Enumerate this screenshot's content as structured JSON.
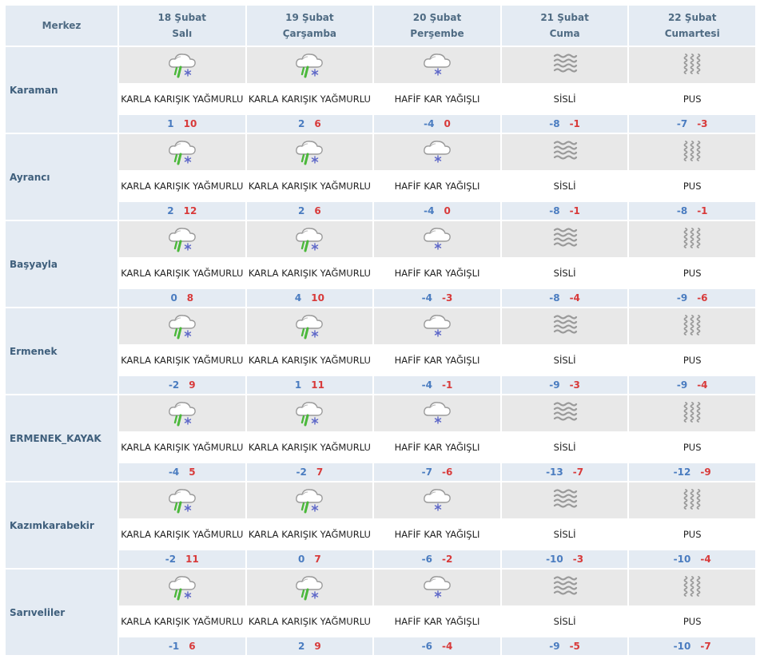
{
  "header": {
    "station_label": "Merkez",
    "days": [
      {
        "date": "18 Şubat",
        "weekday": "Salı"
      },
      {
        "date": "19 Şubat",
        "weekday": "Çarşamba"
      },
      {
        "date": "20 Şubat",
        "weekday": "Perşembe"
      },
      {
        "date": "21 Şubat",
        "weekday": "Cuma"
      },
      {
        "date": "22 Şubat",
        "weekday": "Cumartesi"
      }
    ]
  },
  "icon_names": {
    "sleet": "sleet-cloud-icon",
    "snow": "snow-cloud-icon",
    "fog": "fog-icon",
    "haze": "haze-icon"
  },
  "colors": {
    "min_temp": "#4a7cc0",
    "max_temp": "#d83a3a",
    "header_bg": "#e4ebf3",
    "icon_bg": "#e8e8e8"
  },
  "rows": [
    {
      "city": "Karaman",
      "days": [
        {
          "icon": "sleet",
          "desc": "KARLA KARIŞIK YAĞMURLU",
          "min": "1",
          "max": "10"
        },
        {
          "icon": "sleet",
          "desc": "KARLA KARIŞIK YAĞMURLU",
          "min": "2",
          "max": "6"
        },
        {
          "icon": "snow",
          "desc": "HAFİF KAR YAĞIŞLI",
          "min": "-4",
          "max": "0"
        },
        {
          "icon": "fog",
          "desc": "SİSLİ",
          "min": "-8",
          "max": "-1"
        },
        {
          "icon": "haze",
          "desc": "PUS",
          "min": "-7",
          "max": "-3"
        }
      ]
    },
    {
      "city": "Ayrancı",
      "days": [
        {
          "icon": "sleet",
          "desc": "KARLA KARIŞIK YAĞMURLU",
          "min": "2",
          "max": "12"
        },
        {
          "icon": "sleet",
          "desc": "KARLA KARIŞIK YAĞMURLU",
          "min": "2",
          "max": "6"
        },
        {
          "icon": "snow",
          "desc": "HAFİF KAR YAĞIŞLI",
          "min": "-4",
          "max": "0"
        },
        {
          "icon": "fog",
          "desc": "SİSLİ",
          "min": "-8",
          "max": "-1"
        },
        {
          "icon": "haze",
          "desc": "PUS",
          "min": "-8",
          "max": "-1"
        }
      ]
    },
    {
      "city": "Başyayla",
      "days": [
        {
          "icon": "sleet",
          "desc": "KARLA KARIŞIK YAĞMURLU",
          "min": "0",
          "max": "8"
        },
        {
          "icon": "sleet",
          "desc": "KARLA KARIŞIK YAĞMURLU",
          "min": "4",
          "max": "10"
        },
        {
          "icon": "snow",
          "desc": "HAFİF KAR YAĞIŞLI",
          "min": "-4",
          "max": "-3"
        },
        {
          "icon": "fog",
          "desc": "SİSLİ",
          "min": "-8",
          "max": "-4"
        },
        {
          "icon": "haze",
          "desc": "PUS",
          "min": "-9",
          "max": "-6"
        }
      ]
    },
    {
      "city": "Ermenek",
      "days": [
        {
          "icon": "sleet",
          "desc": "KARLA KARIŞIK YAĞMURLU",
          "min": "-2",
          "max": "9"
        },
        {
          "icon": "sleet",
          "desc": "KARLA KARIŞIK YAĞMURLU",
          "min": "1",
          "max": "11"
        },
        {
          "icon": "snow",
          "desc": "HAFİF KAR YAĞIŞLI",
          "min": "-4",
          "max": "-1"
        },
        {
          "icon": "fog",
          "desc": "SİSLİ",
          "min": "-9",
          "max": "-3"
        },
        {
          "icon": "haze",
          "desc": "PUS",
          "min": "-9",
          "max": "-4"
        }
      ]
    },
    {
      "city": "ERMENEK_KAYAK",
      "days": [
        {
          "icon": "sleet",
          "desc": "KARLA KARIŞIK YAĞMURLU",
          "min": "-4",
          "max": "5"
        },
        {
          "icon": "sleet",
          "desc": "KARLA KARIŞIK YAĞMURLU",
          "min": "-2",
          "max": "7"
        },
        {
          "icon": "snow",
          "desc": "HAFİF KAR YAĞIŞLI",
          "min": "-7",
          "max": "-6"
        },
        {
          "icon": "fog",
          "desc": "SİSLİ",
          "min": "-13",
          "max": "-7"
        },
        {
          "icon": "haze",
          "desc": "PUS",
          "min": "-12",
          "max": "-9"
        }
      ]
    },
    {
      "city": "Kazımkarabekir",
      "days": [
        {
          "icon": "sleet",
          "desc": "KARLA KARIŞIK YAĞMURLU",
          "min": "-2",
          "max": "11"
        },
        {
          "icon": "sleet",
          "desc": "KARLA KARIŞIK YAĞMURLU",
          "min": "0",
          "max": "7"
        },
        {
          "icon": "snow",
          "desc": "HAFİF KAR YAĞIŞLI",
          "min": "-6",
          "max": "-2"
        },
        {
          "icon": "fog",
          "desc": "SİSLİ",
          "min": "-10",
          "max": "-3"
        },
        {
          "icon": "haze",
          "desc": "PUS",
          "min": "-10",
          "max": "-4"
        }
      ]
    },
    {
      "city": "Sarıveliler",
      "days": [
        {
          "icon": "sleet",
          "desc": "KARLA KARIŞIK YAĞMURLU",
          "min": "-1",
          "max": "6"
        },
        {
          "icon": "sleet",
          "desc": "KARLA KARIŞIK YAĞMURLU",
          "min": "2",
          "max": "9"
        },
        {
          "icon": "snow",
          "desc": "HAFİF KAR YAĞIŞLI",
          "min": "-6",
          "max": "-4"
        },
        {
          "icon": "fog",
          "desc": "SİSLİ",
          "min": "-9",
          "max": "-5"
        },
        {
          "icon": "haze",
          "desc": "PUS",
          "min": "-10",
          "max": "-7"
        }
      ]
    }
  ]
}
